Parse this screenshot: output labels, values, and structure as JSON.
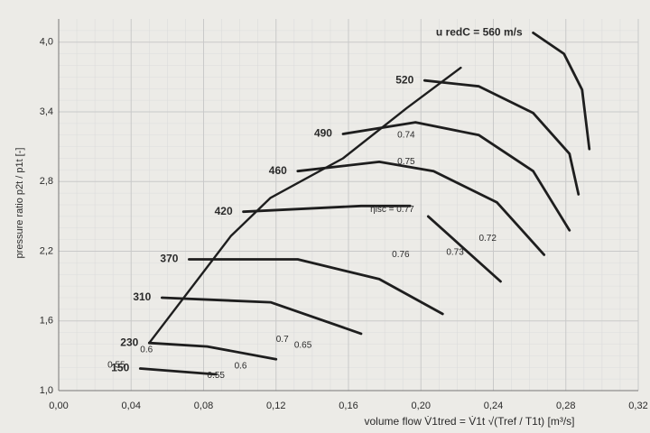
{
  "chart_data": {
    "type": "line",
    "xlabel": "volume    flow    V̇1tred = V̇1t √(Tref / T1t)    [m³/s]",
    "ylabel": "pressure ratio  p2t / p1t [-]",
    "xlim": [
      0,
      0.32
    ],
    "ylim": [
      1.0,
      4.2
    ],
    "xticks": [
      {
        "value": 0,
        "label": "0,00"
      },
      {
        "value": 0.04,
        "label": "0,04"
      },
      {
        "value": 0.08,
        "label": "0,08"
      },
      {
        "value": 0.12,
        "label": "0,12"
      },
      {
        "value": 0.16,
        "label": "0,16"
      },
      {
        "value": 0.2,
        "label": "0,20"
      },
      {
        "value": 0.24,
        "label": "0,24"
      },
      {
        "value": 0.28,
        "label": "0,28"
      },
      {
        "value": 0.32,
        "label": "0,32"
      }
    ],
    "yticks": [
      {
        "value": 1.0,
        "label": "1,0"
      },
      {
        "value": 1.6,
        "label": "1,6"
      },
      {
        "value": 2.2,
        "label": "2,2"
      },
      {
        "value": 2.8,
        "label": "2,8"
      },
      {
        "value": 3.4,
        "label": "3,4"
      },
      {
        "value": 4.0,
        "label": "4,0"
      }
    ],
    "grid": true,
    "series": [
      {
        "name": "150",
        "color": "#1e1e1e",
        "x": [
          0.045,
          0.087
        ],
        "values": [
          1.19,
          1.14
        ]
      },
      {
        "name": "230",
        "color": "#1e1e1e",
        "x": [
          0.05,
          0.082,
          0.12
        ],
        "values": [
          1.41,
          1.38,
          1.27
        ]
      },
      {
        "name": "310",
        "color": "#1e1e1e",
        "x": [
          0.057,
          0.117,
          0.167
        ],
        "values": [
          1.8,
          1.76,
          1.49
        ]
      },
      {
        "name": "370",
        "color": "#1e1e1e",
        "x": [
          0.072,
          0.132,
          0.177,
          0.212
        ],
        "values": [
          2.13,
          2.13,
          1.96,
          1.66
        ]
      },
      {
        "name": "420",
        "color": "#1e1e1e",
        "x": [
          0.102,
          0.167,
          0.194,
          null,
          0.204,
          0.244
        ],
        "values": [
          2.54,
          2.59,
          2.59,
          null,
          2.5,
          1.94
        ]
      },
      {
        "name": "460",
        "color": "#1e1e1e",
        "x": [
          0.132,
          0.177,
          0.207,
          0.242,
          0.268
        ],
        "values": [
          2.89,
          2.97,
          2.89,
          2.62,
          2.17
        ]
      },
      {
        "name": "490",
        "color": "#1e1e1e",
        "x": [
          0.157,
          0.197,
          0.232,
          0.262,
          0.282
        ],
        "values": [
          3.21,
          3.31,
          3.2,
          2.89,
          2.38
        ]
      },
      {
        "name": "520",
        "color": "#1e1e1e",
        "x": [
          0.202,
          0.232,
          0.262,
          0.282,
          0.287
        ],
        "values": [
          3.67,
          3.62,
          3.39,
          3.04,
          2.69
        ]
      },
      {
        "name": "u redC = 560 m/s",
        "color": "#1e1e1e",
        "x": [
          0.262,
          0.279,
          0.289,
          0.293
        ],
        "values": [
          4.08,
          3.9,
          3.59,
          3.08
        ]
      }
    ],
    "surge_line": {
      "color": "#1e1e1e",
      "x": [
        0.05,
        0.095,
        0.117,
        0.157,
        0.192,
        0.222
      ],
      "values": [
        1.41,
        2.33,
        2.66,
        3.0,
        3.43,
        3.78
      ]
    },
    "annotations": [
      {
        "text": "0.55",
        "x": 0.027,
        "y": 1.22
      },
      {
        "text": "0.55",
        "x": 0.082,
        "y": 1.13
      },
      {
        "text": "0.6",
        "x": 0.045,
        "y": 1.35
      },
      {
        "text": "0.6",
        "x": 0.097,
        "y": 1.21
      },
      {
        "text": "0.65",
        "x": 0.13,
        "y": 1.39
      },
      {
        "text": "0.7",
        "x": 0.12,
        "y": 1.44
      },
      {
        "text": "0.72",
        "x": 0.232,
        "y": 2.31
      },
      {
        "text": "0.73",
        "x": 0.214,
        "y": 2.19
      },
      {
        "text": "0.74",
        "x": 0.187,
        "y": 3.2
      },
      {
        "text": "0.75",
        "x": 0.187,
        "y": 2.97
      },
      {
        "text": "0.76",
        "x": 0.184,
        "y": 2.17
      },
      {
        "text": "ηisc = 0.77",
        "x": 0.172,
        "y": 2.56
      }
    ]
  }
}
